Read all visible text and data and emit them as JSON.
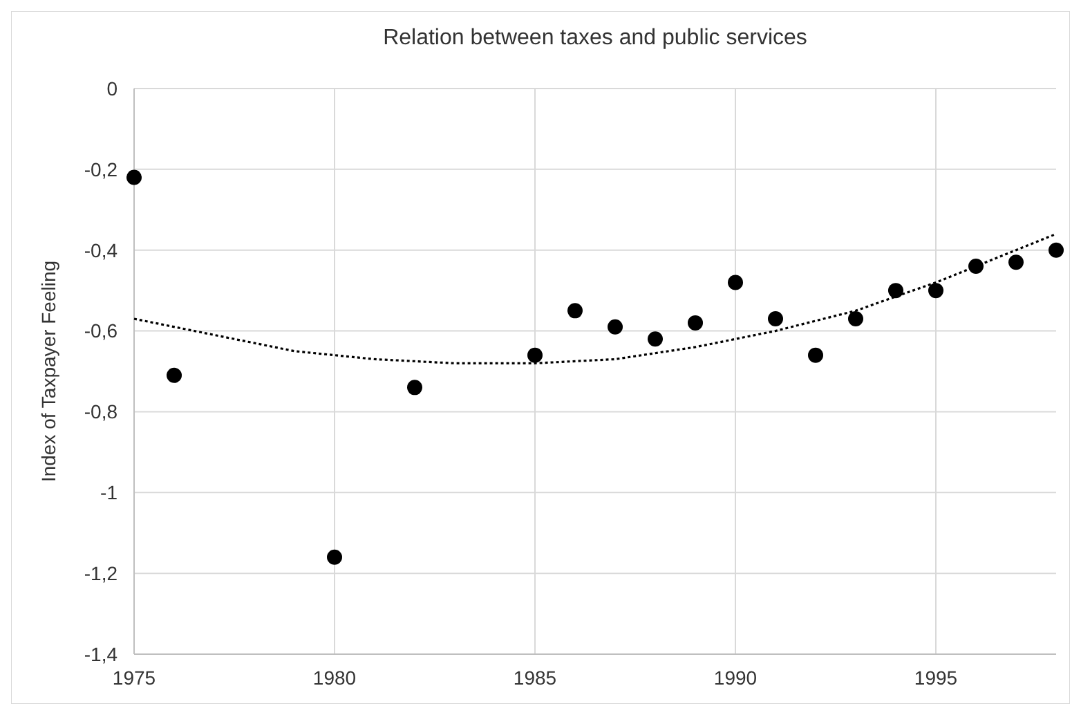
{
  "chart_data": {
    "type": "scatter",
    "title": "Relation between taxes and public services",
    "ylabel": "Index of Taxpayer Feeling",
    "x": [
      1975,
      1976,
      1980,
      1982,
      1985,
      1986,
      1987,
      1988,
      1989,
      1990,
      1991,
      1992,
      1993,
      1994,
      1995,
      1996,
      1997,
      1998
    ],
    "series": [
      {
        "color": "#000000",
        "marker": "circle",
        "values": [
          -0.22,
          -0.71,
          -1.16,
          -0.74,
          -0.66,
          -0.55,
          -0.59,
          -0.62,
          -0.58,
          -0.48,
          -0.57,
          -0.66,
          -0.57,
          -0.5,
          -0.5,
          -0.44,
          -0.43,
          -0.4
        ]
      },
      {
        "type": "line",
        "color": "#000000",
        "line_style": "dotted",
        "marker": "none",
        "x": [
          1975,
          1977,
          1979,
          1981,
          1983,
          1985,
          1987,
          1989,
          1991,
          1993,
          1995,
          1997,
          1998
        ],
        "values": [
          -0.57,
          -0.61,
          -0.65,
          -0.67,
          -0.68,
          -0.68,
          -0.67,
          -0.64,
          -0.6,
          -0.55,
          -0.48,
          -0.4,
          -0.36
        ]
      }
    ],
    "xlim": [
      1975,
      1998
    ],
    "xticks": [
      1975,
      1980,
      1985,
      1990,
      1995
    ],
    "ylim": [
      -1.4,
      0
    ],
    "yticks": [
      {
        "value": -1.4,
        "label": "-1,4"
      },
      {
        "value": -1.2,
        "label": "-1,2"
      },
      {
        "value": -1,
        "label": "-1"
      },
      {
        "value": -0.8,
        "label": "-0,8"
      },
      {
        "value": -0.6,
        "label": "-0,6"
      },
      {
        "value": -0.4,
        "label": "-0,4"
      },
      {
        "value": -0.2,
        "label": "-0,2"
      },
      {
        "value": 0,
        "label": "0"
      }
    ],
    "grid": true
  }
}
